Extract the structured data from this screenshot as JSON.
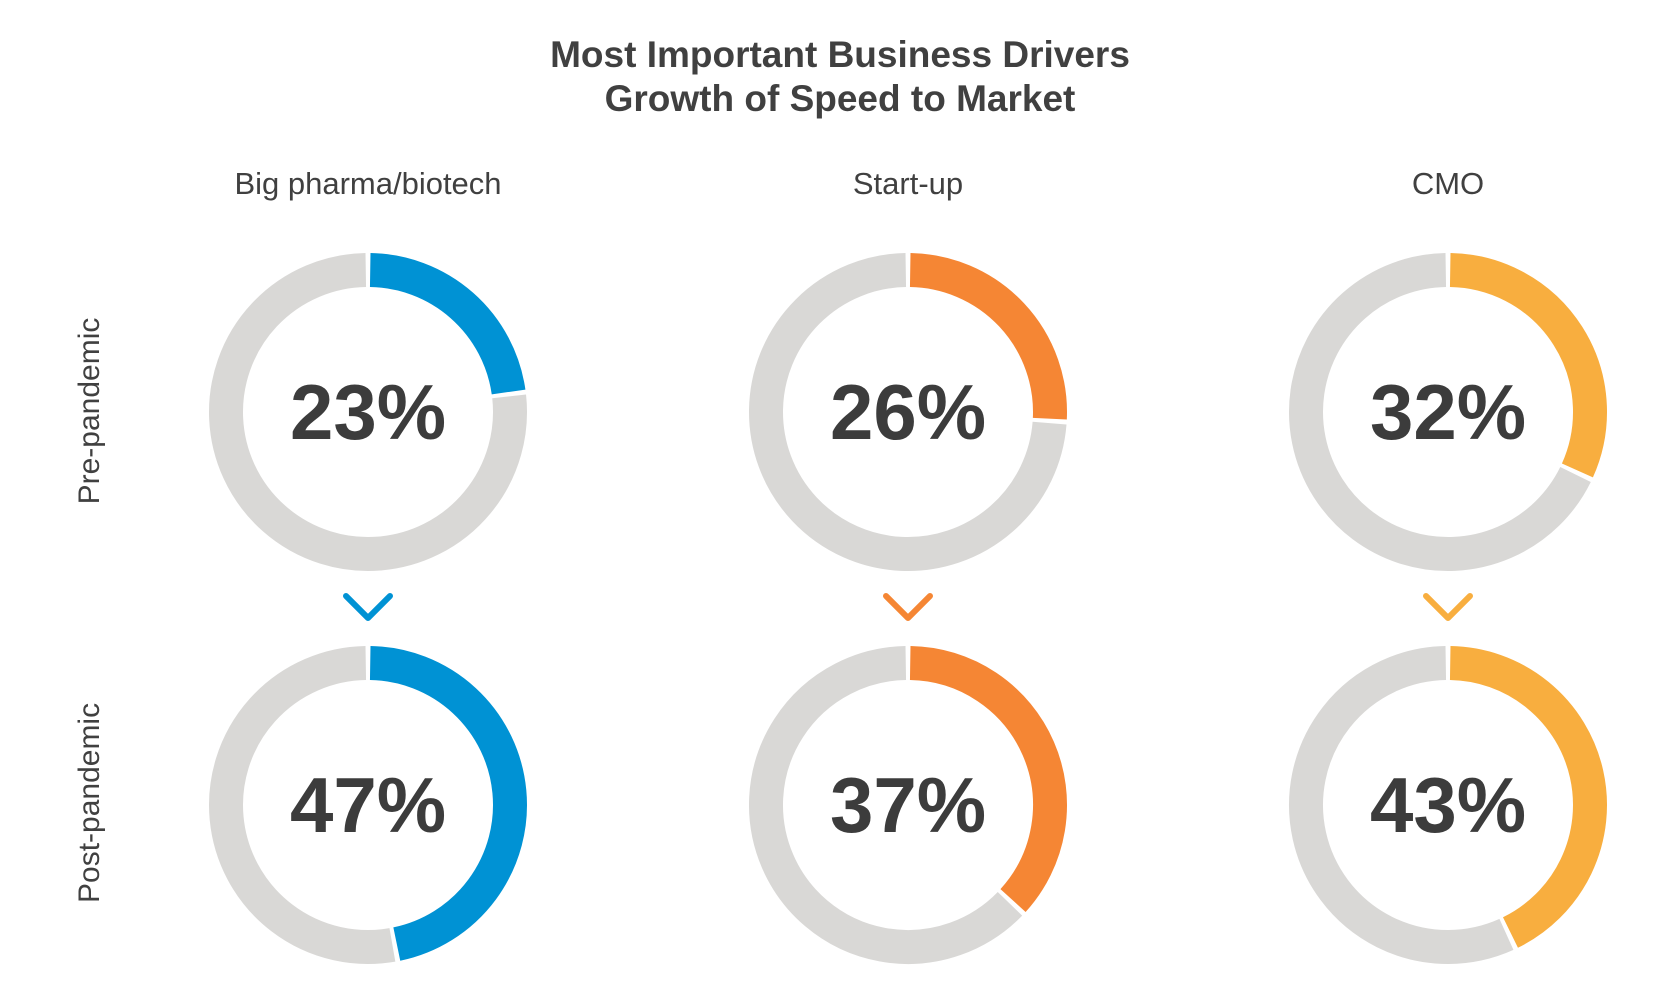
{
  "title_lines": [
    "Most Important Business Drivers",
    "Growth of Speed to Market"
  ],
  "columns": [
    "Big pharma/biotech",
    "Start-up",
    "CMO"
  ],
  "rows": [
    "Pre-pandemic",
    "Post-pandemic"
  ],
  "colors": {
    "track": "#d9d8d6",
    "Big pharma/biotech": "#0092d4",
    "Start-up": "#f58634",
    "CMO": "#f8ae3f",
    "value_text": "#3c3c3c"
  },
  "chart_data": {
    "type": "donut",
    "title": "Most Important Business Drivers Growth of Speed to Market",
    "categories": [
      "Big pharma/biotech",
      "Start-up",
      "CMO"
    ],
    "series": [
      {
        "name": "Pre-pandemic",
        "values": [
          23,
          26,
          32
        ],
        "labels": [
          "23%",
          "26%",
          "32%"
        ]
      },
      {
        "name": "Post-pandemic",
        "values": [
          47,
          37,
          43
        ],
        "labels": [
          "47%",
          "37%",
          "43%"
        ]
      }
    ],
    "unit": "%",
    "max": 100
  }
}
